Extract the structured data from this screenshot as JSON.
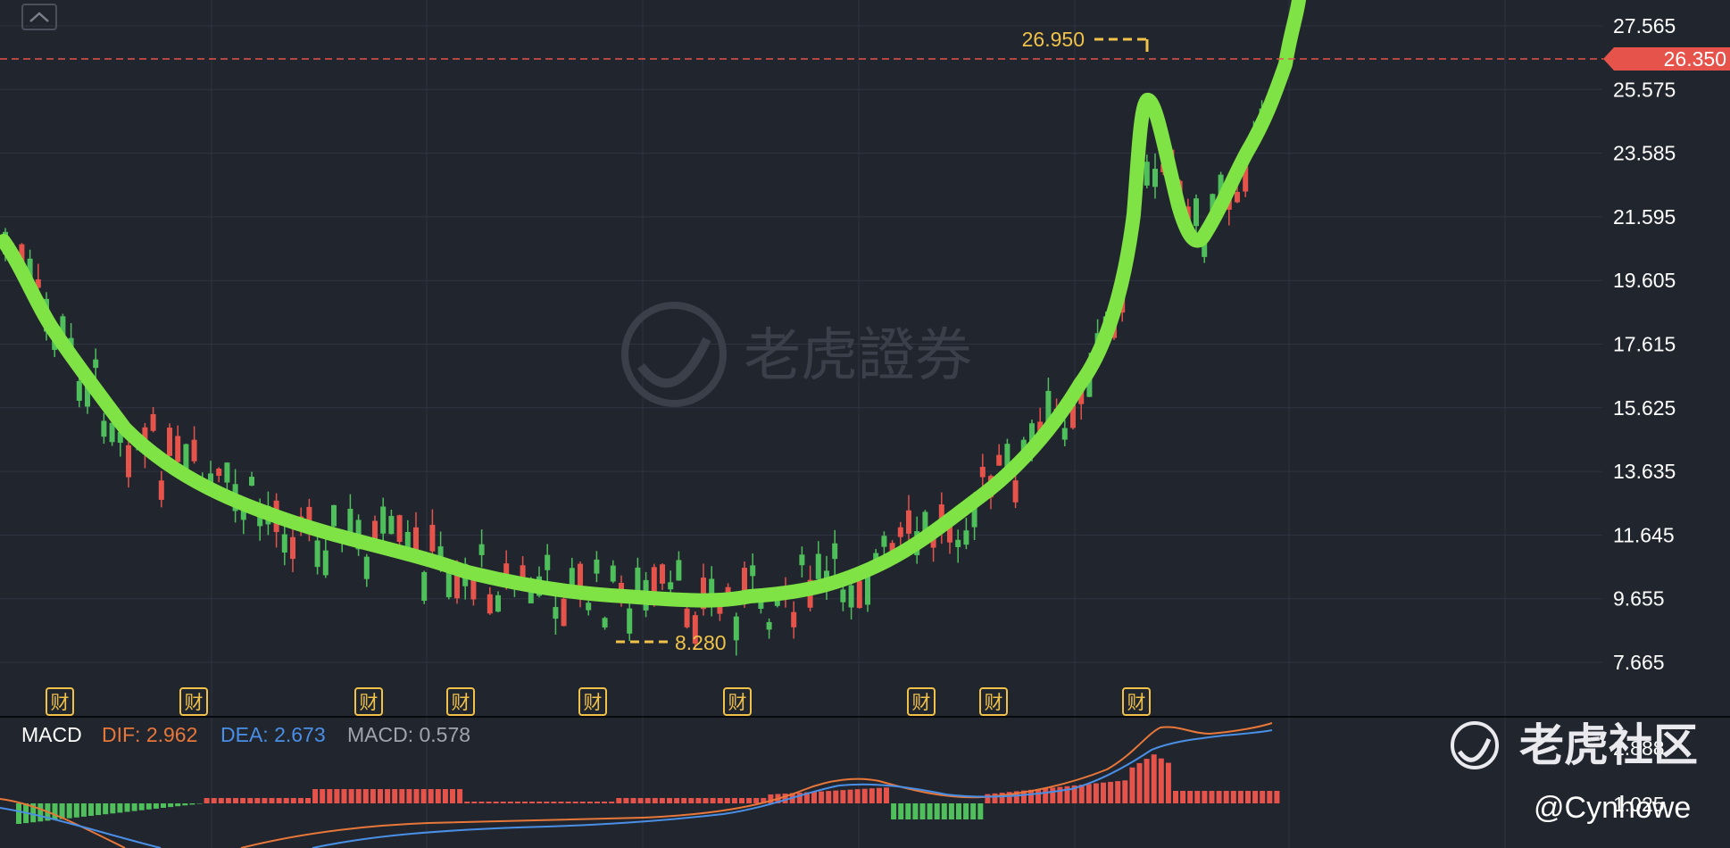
{
  "colors": {
    "background": "#21252e",
    "grid": "#2f3440",
    "up": "#e5534b",
    "down": "#4fbf5b",
    "trend": "#7fe346",
    "highlight": "#f0c24a",
    "price_tag": "#e5534b",
    "dif": "#e8773a",
    "dea": "#4a8fe6",
    "macd_label": "#a0a4ad"
  },
  "chart_data": [
    {
      "type": "candlestick",
      "y_ticks": [
        "27.565",
        "25.575",
        "23.585",
        "21.595",
        "19.605",
        "17.615",
        "15.625",
        "13.635",
        "11.645",
        "9.655",
        "7.665"
      ],
      "ylim": [
        7.665,
        27.565
      ],
      "last_price": "26.350",
      "high_marker": "26.950",
      "low_marker": "8.280",
      "earnings_marker": "财",
      "earnings_marker_count": 9,
      "trend_line_color": "#7fe346",
      "grid": true
    },
    {
      "type": "bar",
      "indicator": "MACD",
      "legend": {
        "name": "MACD",
        "dif_label": "DIF: 2.962",
        "dea_label": "DEA: 2.673",
        "macd_label": "MACD: 0.578"
      },
      "y_ticks": [
        "2.888",
        "1.025"
      ],
      "series": [
        {
          "name": "DIF",
          "type": "line"
        },
        {
          "name": "DEA",
          "type": "line"
        },
        {
          "name": "MACD",
          "type": "bar"
        }
      ]
    }
  ],
  "watermark": {
    "center_text": "老虎證券",
    "corner_text": "老虎社区",
    "author": "@Cynhowe"
  },
  "ui": {
    "collapse_icon": "chevron-up-icon"
  }
}
